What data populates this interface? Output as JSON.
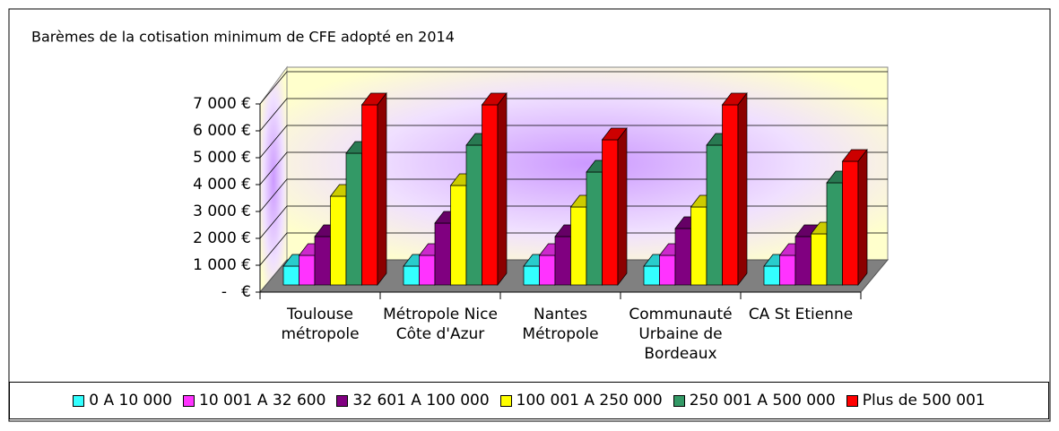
{
  "chart_data": {
    "type": "bar3d",
    "title": "Barèmes de la cotisation minimum de CFE adopté en 2014",
    "categories": [
      "Toulouse métropole",
      "Métropole Nice Côte d'Azur",
      "Nantes Métropole",
      "Communauté Urbaine de Bordeaux",
      "CA St Etienne"
    ],
    "series": [
      {
        "name": "0 A 10 000",
        "color": "#33ffff",
        "values": [
          700,
          700,
          700,
          700,
          700
        ]
      },
      {
        "name": "10 001 A 32 600",
        "color": "#ff33ff",
        "values": [
          1100,
          1100,
          1100,
          1100,
          1100
        ]
      },
      {
        "name": "32 601 A 100 000",
        "color": "#800080",
        "values": [
          1800,
          2300,
          1800,
          2100,
          1800
        ]
      },
      {
        "name": "100 001 A 250 000",
        "color": "#ffff00",
        "values": [
          3300,
          3700,
          2900,
          2900,
          1900
        ]
      },
      {
        "name": "250 001 A 500 000",
        "color": "#339966",
        "values": [
          4900,
          5200,
          4200,
          5200,
          3800
        ]
      },
      {
        "name": "Plus de 500 001",
        "color": "#ff0000",
        "values": [
          6700,
          6700,
          5400,
          6700,
          4600
        ]
      }
    ],
    "ylim": [
      0,
      7000
    ],
    "yticks": [
      {
        "value": 0,
        "label": "-   €"
      },
      {
        "value": 1000,
        "label": "1 000 €"
      },
      {
        "value": 2000,
        "label": "2 000 €"
      },
      {
        "value": 3000,
        "label": "3 000 €"
      },
      {
        "value": 4000,
        "label": "4 000 €"
      },
      {
        "value": 5000,
        "label": "5 000 €"
      },
      {
        "value": 6000,
        "label": "6 000 €"
      },
      {
        "value": 7000,
        "label": "7 000 €"
      }
    ],
    "grid": true,
    "legend": "bottom"
  }
}
